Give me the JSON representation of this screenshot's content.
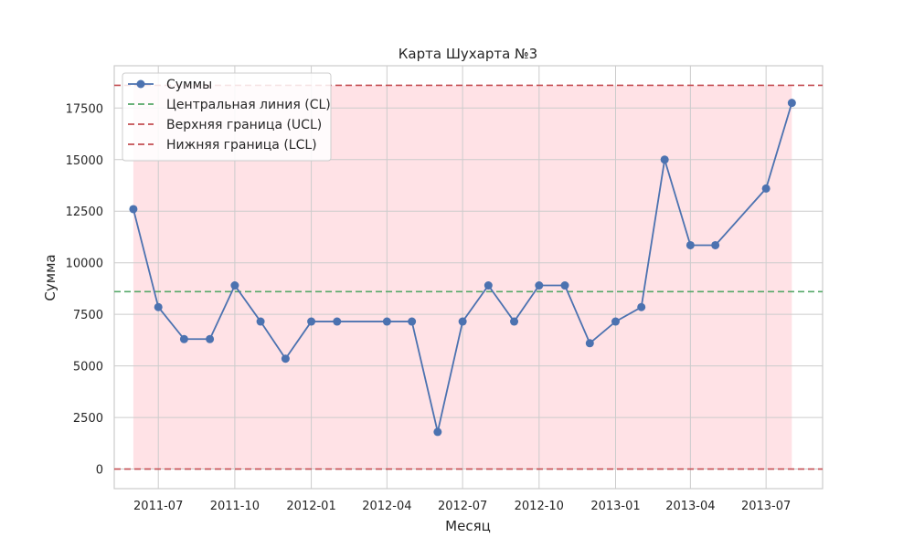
{
  "chart_data": {
    "type": "line",
    "title": "Карта Шухарта №3",
    "xlabel": "Месяц",
    "ylabel": "Сумма",
    "x": [
      "2011-06",
      "2011-07",
      "2011-08",
      "2011-09",
      "2011-10",
      "2011-11",
      "2011-12",
      "2012-01",
      "2012-02",
      "2012-04",
      "2012-05",
      "2012-06",
      "2012-07",
      "2012-08",
      "2012-09",
      "2012-10",
      "2012-11",
      "2012-12",
      "2013-01",
      "2013-02",
      "2013-03",
      "2013-04",
      "2013-05",
      "2013-07",
      "2013-08"
    ],
    "series": [
      {
        "name": "Суммы",
        "color": "#4c72b0",
        "values": [
          12600,
          7850,
          6300,
          6300,
          8900,
          7150,
          5350,
          7150,
          7150,
          7150,
          7150,
          1800,
          7150,
          8900,
          7150,
          8900,
          8900,
          6100,
          7150,
          7850,
          15000,
          10850,
          10850,
          13600,
          17750
        ]
      }
    ],
    "control_lines": [
      {
        "name": "Центральная линия (CL)",
        "value": 8600,
        "color": "#55a868"
      },
      {
        "name": "Верхняя граница (UCL)",
        "value": 18600,
        "color": "#c44e52"
      },
      {
        "name": "Нижняя граница (LCL)",
        "value": 0,
        "color": "#c44e52"
      }
    ],
    "band": {
      "from": 0,
      "to": 18600,
      "color": "#ffb6c1"
    },
    "xticks": [
      "2011-07",
      "2011-10",
      "2012-01",
      "2012-04",
      "2012-07",
      "2012-10",
      "2013-01",
      "2013-04",
      "2013-07"
    ],
    "yticks": [
      0,
      2500,
      5000,
      7500,
      10000,
      12500,
      15000,
      17500
    ],
    "ylim": [
      -950,
      19550
    ],
    "xlim": [
      "2011-05-09",
      "2013-09-07"
    ],
    "grid": true,
    "legend_position": "top-left"
  }
}
